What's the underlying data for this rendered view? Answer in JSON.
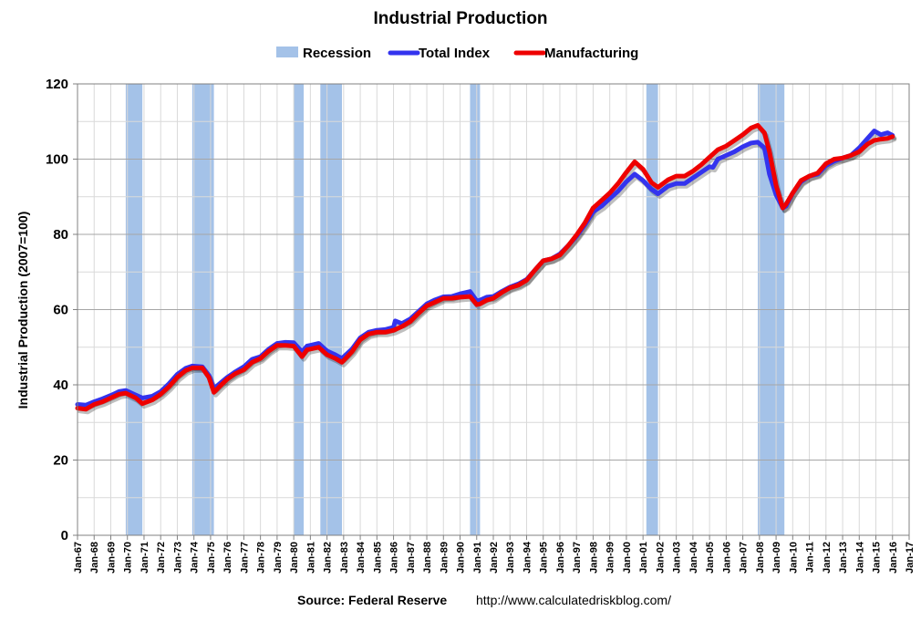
{
  "chart_data": {
    "type": "line",
    "title": "Industrial Production",
    "ylabel": "Industrial Production (2007=100)",
    "ylim": [
      0,
      120
    ],
    "yticks": [
      0,
      20,
      40,
      60,
      80,
      100,
      120
    ],
    "xlim": [
      1967.0,
      2017.0
    ],
    "xtick_labels": [
      "Jan-67",
      "Jan-68",
      "Jan-69",
      "Jan-70",
      "Jan-71",
      "Jan-72",
      "Jan-73",
      "Jan-74",
      "Jan-75",
      "Jan-76",
      "Jan-77",
      "Jan-78",
      "Jan-79",
      "Jan-80",
      "Jan-81",
      "Jan-82",
      "Jan-83",
      "Jan-84",
      "Jan-85",
      "Jan-86",
      "Jan-87",
      "Jan-88",
      "Jan-89",
      "Jan-90",
      "Jan-91",
      "Jan-92",
      "Jan-93",
      "Jan-94",
      "Jan-95",
      "Jan-96",
      "Jan-97",
      "Jan-98",
      "Jan-99",
      "Jan-00",
      "Jan-01",
      "Jan-02",
      "Jan-03",
      "Jan-04",
      "Jan-05",
      "Jan-06",
      "Jan-07",
      "Jan-08",
      "Jan-09",
      "Jan-10",
      "Jan-11",
      "Jan-12",
      "Jan-13",
      "Jan-14",
      "Jan-15",
      "Jan-16",
      "Jan-17"
    ],
    "grid": true,
    "legend_position": "top",
    "legend": [
      {
        "label": "Recession",
        "color": "#a4c2e8",
        "kind": "band"
      },
      {
        "label": "Total Index",
        "color": "#3333ee",
        "kind": "line"
      },
      {
        "label": "Manufacturing",
        "color": "#ee0000",
        "kind": "line"
      }
    ],
    "recessions": [
      [
        1969.9,
        1970.9
      ],
      [
        1973.9,
        1975.2
      ],
      [
        1980.0,
        1980.6
      ],
      [
        1981.6,
        1982.9
      ],
      [
        1990.6,
        1991.2
      ],
      [
        2001.2,
        2001.9
      ],
      [
        2007.9,
        2009.5
      ]
    ],
    "series": [
      {
        "name": "Total Index",
        "color": "#3333ee",
        "points": [
          [
            1967.0,
            34.8
          ],
          [
            1967.5,
            34.6
          ],
          [
            1968.0,
            35.5
          ],
          [
            1968.5,
            36.3
          ],
          [
            1969.0,
            37.2
          ],
          [
            1969.5,
            38.2
          ],
          [
            1969.9,
            38.5
          ],
          [
            1970.5,
            37.3
          ],
          [
            1970.9,
            36.5
          ],
          [
            1971.5,
            37.0
          ],
          [
            1972.0,
            38.2
          ],
          [
            1972.5,
            40.3
          ],
          [
            1973.0,
            42.8
          ],
          [
            1973.5,
            44.4
          ],
          [
            1973.9,
            45.0
          ],
          [
            1974.5,
            44.8
          ],
          [
            1974.9,
            42.5
          ],
          [
            1975.2,
            39.0
          ],
          [
            1975.6,
            40.5
          ],
          [
            1976.0,
            42.0
          ],
          [
            1976.5,
            43.5
          ],
          [
            1977.0,
            44.8
          ],
          [
            1977.5,
            46.8
          ],
          [
            1978.0,
            47.5
          ],
          [
            1978.5,
            49.5
          ],
          [
            1979.0,
            51.0
          ],
          [
            1979.5,
            51.3
          ],
          [
            1980.0,
            51.2
          ],
          [
            1980.5,
            48.8
          ],
          [
            1980.8,
            50.3
          ],
          [
            1981.0,
            50.5
          ],
          [
            1981.5,
            51.0
          ],
          [
            1982.0,
            49.0
          ],
          [
            1982.5,
            48.0
          ],
          [
            1982.9,
            47.0
          ],
          [
            1983.5,
            49.5
          ],
          [
            1984.0,
            52.5
          ],
          [
            1984.5,
            54.0
          ],
          [
            1985.0,
            54.5
          ],
          [
            1985.5,
            54.7
          ],
          [
            1986.0,
            55.3
          ],
          [
            1986.1,
            57.0
          ],
          [
            1986.5,
            56.3
          ],
          [
            1987.0,
            57.5
          ],
          [
            1987.5,
            59.5
          ],
          [
            1988.0,
            61.5
          ],
          [
            1988.5,
            62.6
          ],
          [
            1989.0,
            63.4
          ],
          [
            1989.5,
            63.5
          ],
          [
            1990.0,
            64.2
          ],
          [
            1990.6,
            64.8
          ],
          [
            1991.0,
            62.3
          ],
          [
            1991.2,
            62.5
          ],
          [
            1991.6,
            63.3
          ],
          [
            1992.0,
            63.5
          ],
          [
            1992.5,
            64.8
          ],
          [
            1993.0,
            66.0
          ],
          [
            1993.5,
            66.8
          ],
          [
            1994.0,
            68.0
          ],
          [
            1994.5,
            70.5
          ],
          [
            1995.0,
            73.0
          ],
          [
            1995.5,
            73.5
          ],
          [
            1996.0,
            74.8
          ],
          [
            1996.5,
            77.0
          ],
          [
            1997.0,
            79.5
          ],
          [
            1997.5,
            82.5
          ],
          [
            1998.0,
            86.0
          ],
          [
            1998.5,
            87.5
          ],
          [
            1999.0,
            89.5
          ],
          [
            1999.5,
            91.5
          ],
          [
            2000.0,
            94.0
          ],
          [
            2000.5,
            96.0
          ],
          [
            2001.0,
            94.3
          ],
          [
            2001.5,
            92.0
          ],
          [
            2001.9,
            90.8
          ],
          [
            2002.5,
            92.8
          ],
          [
            2003.0,
            93.5
          ],
          [
            2003.5,
            93.5
          ],
          [
            2004.0,
            95.0
          ],
          [
            2004.5,
            96.5
          ],
          [
            2005.0,
            98.0
          ],
          [
            2005.2,
            97.8
          ],
          [
            2005.5,
            100.0
          ],
          [
            2006.0,
            101.0
          ],
          [
            2006.5,
            102.0
          ],
          [
            2007.0,
            103.3
          ],
          [
            2007.5,
            104.3
          ],
          [
            2007.9,
            104.5
          ],
          [
            2008.3,
            103.0
          ],
          [
            2008.6,
            96.0
          ],
          [
            2009.0,
            90.5
          ],
          [
            2009.4,
            87.0
          ],
          [
            2009.6,
            87.5
          ],
          [
            2010.0,
            91.0
          ],
          [
            2010.5,
            94.0
          ],
          [
            2011.0,
            95.5
          ],
          [
            2011.5,
            96.0
          ],
          [
            2012.0,
            98.3
          ],
          [
            2012.5,
            99.5
          ],
          [
            2013.0,
            100.3
          ],
          [
            2013.5,
            101.0
          ],
          [
            2014.0,
            103.0
          ],
          [
            2014.5,
            105.5
          ],
          [
            2014.9,
            107.5
          ],
          [
            2015.3,
            106.5
          ],
          [
            2015.7,
            107.0
          ],
          [
            2016.0,
            106.3
          ]
        ]
      },
      {
        "name": "Manufacturing",
        "color": "#ee0000",
        "points": [
          [
            1967.0,
            33.8
          ],
          [
            1967.5,
            33.5
          ],
          [
            1968.0,
            34.8
          ],
          [
            1968.5,
            35.5
          ],
          [
            1969.0,
            36.5
          ],
          [
            1969.5,
            37.5
          ],
          [
            1969.9,
            37.8
          ],
          [
            1970.5,
            36.5
          ],
          [
            1970.9,
            35.0
          ],
          [
            1971.5,
            36.0
          ],
          [
            1972.0,
            37.5
          ],
          [
            1972.5,
            39.5
          ],
          [
            1973.0,
            42.0
          ],
          [
            1973.5,
            43.8
          ],
          [
            1973.9,
            44.5
          ],
          [
            1974.5,
            44.5
          ],
          [
            1974.9,
            42.0
          ],
          [
            1975.2,
            38.0
          ],
          [
            1975.6,
            39.8
          ],
          [
            1976.0,
            41.5
          ],
          [
            1976.5,
            43.0
          ],
          [
            1977.0,
            44.0
          ],
          [
            1977.5,
            46.0
          ],
          [
            1978.0,
            47.0
          ],
          [
            1978.5,
            49.0
          ],
          [
            1979.0,
            50.5
          ],
          [
            1979.5,
            50.5
          ],
          [
            1980.0,
            50.3
          ],
          [
            1980.5,
            47.5
          ],
          [
            1980.8,
            49.3
          ],
          [
            1981.0,
            49.5
          ],
          [
            1981.5,
            50.0
          ],
          [
            1982.0,
            48.0
          ],
          [
            1982.5,
            47.0
          ],
          [
            1982.9,
            46.0
          ],
          [
            1983.5,
            48.8
          ],
          [
            1984.0,
            52.0
          ],
          [
            1984.5,
            53.5
          ],
          [
            1985.0,
            54.0
          ],
          [
            1985.5,
            54.0
          ],
          [
            1986.0,
            54.5
          ],
          [
            1986.5,
            55.5
          ],
          [
            1987.0,
            56.8
          ],
          [
            1987.5,
            59.0
          ],
          [
            1988.0,
            61.0
          ],
          [
            1988.5,
            62.0
          ],
          [
            1989.0,
            63.0
          ],
          [
            1989.5,
            63.0
          ],
          [
            1990.0,
            63.3
          ],
          [
            1990.6,
            63.5
          ],
          [
            1991.0,
            61.3
          ],
          [
            1991.2,
            61.5
          ],
          [
            1991.6,
            62.5
          ],
          [
            1992.0,
            63.0
          ],
          [
            1992.5,
            64.5
          ],
          [
            1993.0,
            65.8
          ],
          [
            1993.5,
            66.5
          ],
          [
            1994.0,
            67.8
          ],
          [
            1994.5,
            70.5
          ],
          [
            1995.0,
            73.0
          ],
          [
            1995.5,
            73.5
          ],
          [
            1996.0,
            74.5
          ],
          [
            1996.5,
            77.0
          ],
          [
            1997.0,
            79.8
          ],
          [
            1997.5,
            83.0
          ],
          [
            1998.0,
            87.0
          ],
          [
            1998.5,
            89.0
          ],
          [
            1999.0,
            91.0
          ],
          [
            1999.5,
            93.5
          ],
          [
            2000.0,
            96.5
          ],
          [
            2000.5,
            99.3
          ],
          [
            2001.0,
            97.3
          ],
          [
            2001.5,
            93.8
          ],
          [
            2001.9,
            92.5
          ],
          [
            2002.5,
            94.5
          ],
          [
            2003.0,
            95.5
          ],
          [
            2003.5,
            95.5
          ],
          [
            2004.0,
            96.8
          ],
          [
            2004.5,
            98.5
          ],
          [
            2005.0,
            100.5
          ],
          [
            2005.5,
            102.5
          ],
          [
            2006.0,
            103.5
          ],
          [
            2006.5,
            105.0
          ],
          [
            2007.0,
            106.5
          ],
          [
            2007.5,
            108.3
          ],
          [
            2007.9,
            109.0
          ],
          [
            2008.3,
            107.0
          ],
          [
            2008.6,
            102.0
          ],
          [
            2009.0,
            93.0
          ],
          [
            2009.4,
            87.0
          ],
          [
            2009.6,
            88.0
          ],
          [
            2010.0,
            91.0
          ],
          [
            2010.5,
            94.3
          ],
          [
            2011.0,
            95.5
          ],
          [
            2011.5,
            96.3
          ],
          [
            2012.0,
            98.8
          ],
          [
            2012.5,
            100.0
          ],
          [
            2013.0,
            100.3
          ],
          [
            2013.5,
            101.0
          ],
          [
            2014.0,
            102.0
          ],
          [
            2014.5,
            104.0
          ],
          [
            2014.9,
            105.0
          ],
          [
            2015.3,
            105.3
          ],
          [
            2015.7,
            105.5
          ],
          [
            2016.0,
            106.0
          ]
        ]
      }
    ],
    "source_label": "Source: Federal Reserve",
    "source_url": "http://www.calculatedriskblog.com/"
  }
}
